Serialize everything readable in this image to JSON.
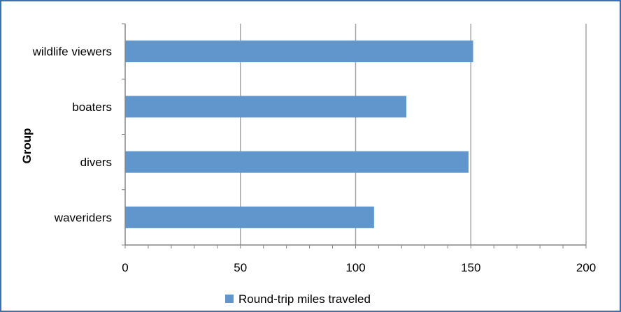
{
  "chart_data": {
    "type": "bar",
    "orientation": "horizontal",
    "title": "",
    "xlabel": "",
    "ylabel": "Group",
    "categories": [
      "wildlife viewers",
      "boaters",
      "divers",
      "waveriders"
    ],
    "series": [
      {
        "name": "Round-trip miles traveled",
        "values": [
          151,
          122,
          149,
          108
        ],
        "color": "#6096cc"
      }
    ],
    "xlim": [
      0,
      200
    ],
    "xticks": [
      0,
      50,
      100,
      150,
      200
    ],
    "grid": "vertical major gridlines",
    "legend": "bottom"
  },
  "colors": {
    "border": "#3b6fb6",
    "bar": "#6096cc",
    "grid": "#a6a6a6",
    "axis": "#868686"
  }
}
